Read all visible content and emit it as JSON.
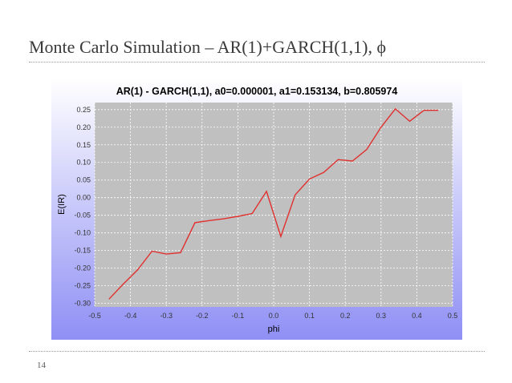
{
  "slide": {
    "title": "Monte Carlo Simulation – AR(1)+GARCH(1,1), ϕ",
    "page_number": "14"
  },
  "colors": {
    "plot_background": "#c0c0c0",
    "panel_gradient_top": "#ffffff",
    "panel_gradient_bottom": "#8f8ff5",
    "series_line": "#e0302e",
    "grid": "#ffffff"
  },
  "chart_data": {
    "type": "line",
    "title": "AR(1) - GARCH(1,1), a0=0.000001, a1=0.153134, b=0.805974",
    "xlabel": "phi",
    "ylabel": "E(IR)",
    "xlim": [
      -0.5,
      0.5
    ],
    "ylim": [
      -0.31,
      0.27
    ],
    "grid": true,
    "x_ticks": [
      "-0.5",
      "-0.4",
      "-0.3",
      "-0.2",
      "-0.1",
      "0.0",
      "0.1",
      "0.2",
      "0.3",
      "0.4",
      "0.5"
    ],
    "y_ticks": [
      "0.25",
      "0.20",
      "0.15",
      "0.10",
      "0.05",
      "0.00",
      "-0.05",
      "-0.10",
      "-0.15",
      "-0.20",
      "-0.25",
      "-0.30"
    ],
    "series": [
      {
        "x": [
          -0.46,
          -0.42,
          -0.38,
          -0.34,
          -0.3,
          -0.26,
          -0.22,
          -0.18,
          -0.14,
          -0.1,
          -0.06,
          -0.02,
          0.02,
          0.06,
          0.1,
          0.14,
          0.18,
          0.22,
          0.26,
          0.3,
          0.34,
          0.38,
          0.42,
          0.46
        ],
        "y": [
          -0.288,
          -0.245,
          -0.205,
          -0.152,
          -0.16,
          -0.156,
          -0.071,
          -0.065,
          -0.06,
          -0.053,
          -0.045,
          0.018,
          -0.11,
          0.008,
          0.053,
          0.072,
          0.108,
          0.104,
          0.137,
          0.2,
          0.252,
          0.217,
          0.248,
          0.248
        ]
      }
    ]
  }
}
